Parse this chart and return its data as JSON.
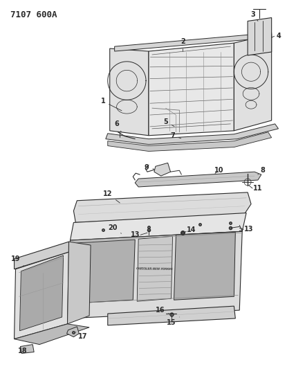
{
  "title": "7107 600A",
  "bg_color": "#ffffff",
  "line_color": "#2a2a2a",
  "title_fontsize": 9,
  "fig_width": 4.28,
  "fig_height": 5.33,
  "dpi": 100,
  "label_fontsize": 7.0
}
